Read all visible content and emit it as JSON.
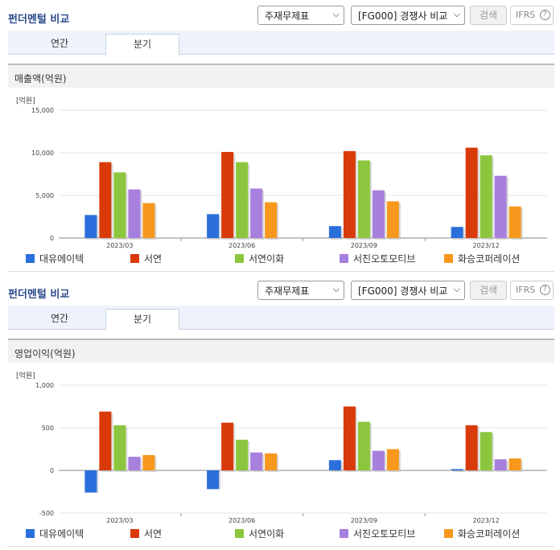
{
  "panels": [
    {
      "title": "펀더멘털 비교",
      "select_report": "주재무제표",
      "select_compare": "[FG000] 경쟁사 비교",
      "search_label": "검색",
      "ifrs_label": "IFRS",
      "help_glyph": "?",
      "tabs": [
        "연간",
        "분기"
      ],
      "active_tab": "분기",
      "metric_title": "매출액(억원)",
      "unit_label": "[억원]"
    },
    {
      "title": "펀더멘털 비교",
      "select_report": "주재무제표",
      "select_compare": "[FG000] 경쟁사 비교",
      "search_label": "검색",
      "ifrs_label": "IFRS",
      "help_glyph": "?",
      "tabs": [
        "연간",
        "분기"
      ],
      "active_tab": "분기",
      "metric_title": "영업이익(억원)",
      "unit_label": "[억원]"
    }
  ],
  "legend": [
    {
      "name": "대유에이텍",
      "color": "#2a6fdb"
    },
    {
      "name": "서연",
      "color": "#d93a0a"
    },
    {
      "name": "서연이화",
      "color": "#8cc63e"
    },
    {
      "name": "서진오토모티브",
      "color": "#a77fdc"
    },
    {
      "name": "화승코퍼레이션",
      "color": "#f7981d"
    }
  ],
  "chart_data": [
    {
      "type": "bar",
      "ylabel": "[억원]",
      "ylim": [
        0,
        15000
      ],
      "y_ticks": [
        0,
        5000,
        10000,
        15000
      ],
      "y_tick_labels": [
        "0",
        "5,000",
        "10,000",
        "15,000"
      ],
      "categories": [
        "2023/03",
        "2023/06",
        "2023/09",
        "2023/12"
      ],
      "series": [
        {
          "name": "대유에이텍",
          "values": [
            2700,
            2800,
            1400,
            1300
          ]
        },
        {
          "name": "서연",
          "values": [
            8900,
            10100,
            10200,
            10600
          ]
        },
        {
          "name": "서연이화",
          "values": [
            7700,
            8900,
            9100,
            9700
          ]
        },
        {
          "name": "서진오토모티브",
          "values": [
            5700,
            5800,
            5600,
            7300
          ]
        },
        {
          "name": "화승코퍼레이션",
          "values": [
            4100,
            4200,
            4300,
            3700
          ]
        }
      ]
    },
    {
      "type": "bar",
      "ylabel": "[억원]",
      "ylim": [
        -500,
        1000
      ],
      "y_ticks": [
        -500,
        0,
        500,
        1000
      ],
      "y_tick_labels": [
        "-500",
        "0",
        "500",
        "1,000"
      ],
      "categories": [
        "2023/03",
        "2023/06",
        "2023/09",
        "2023/12"
      ],
      "series": [
        {
          "name": "대유에이텍",
          "values": [
            -260,
            -220,
            120,
            15
          ]
        },
        {
          "name": "서연",
          "values": [
            690,
            560,
            750,
            530
          ]
        },
        {
          "name": "서연이화",
          "values": [
            530,
            360,
            570,
            450
          ]
        },
        {
          "name": "서진오토모티브",
          "values": [
            160,
            210,
            230,
            130
          ]
        },
        {
          "name": "화승코퍼레이션",
          "values": [
            180,
            200,
            250,
            140
          ]
        }
      ]
    }
  ]
}
